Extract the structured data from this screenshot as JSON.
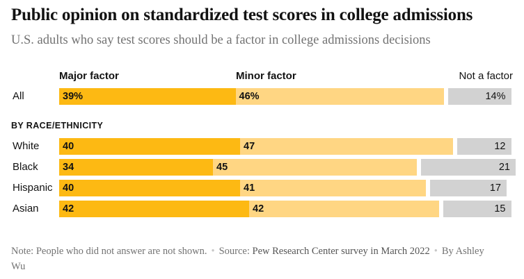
{
  "title": "Public opinion on standardized test scores in college admissions",
  "subtitle": "U.S. adults who say test scores should be a factor in college admissions decisions",
  "chart_data": {
    "type": "bar",
    "orientation": "horizontal-stacked",
    "title": "Public opinion on standardized test scores in college admissions",
    "subtitle": "U.S. adults who say test scores should be a factor in college admissions decisions",
    "series_names": [
      "Major factor",
      "Minor factor",
      "Not a factor"
    ],
    "colors": {
      "major": "#fdb913",
      "minor": "#ffd683",
      "not": "#d2d2d2"
    },
    "section_label": "BY RACE/ETHNICITY",
    "overall": {
      "label": "All",
      "major": 39,
      "minor": 46,
      "not": 14,
      "display": [
        "39%",
        "46%",
        "14%"
      ]
    },
    "groups": [
      {
        "label": "White",
        "major": 40,
        "minor": 47,
        "not": 12
      },
      {
        "label": "Black",
        "major": 34,
        "minor": 45,
        "not": 21
      },
      {
        "label": "Hispanic",
        "major": 40,
        "minor": 41,
        "not": 17
      },
      {
        "label": "Asian",
        "major": 42,
        "minor": 42,
        "not": 15
      }
    ],
    "value_range": [
      0,
      100
    ],
    "unit": "percent"
  },
  "legend": {
    "major": "Major factor",
    "minor": "Minor factor",
    "not": "Not a factor"
  },
  "footer": {
    "note": "Note: People who did not answer are not shown.",
    "source_label": "Source:",
    "source_text": "Pew Research Center survey in March 2022",
    "byline": "By Ashley Wu"
  }
}
